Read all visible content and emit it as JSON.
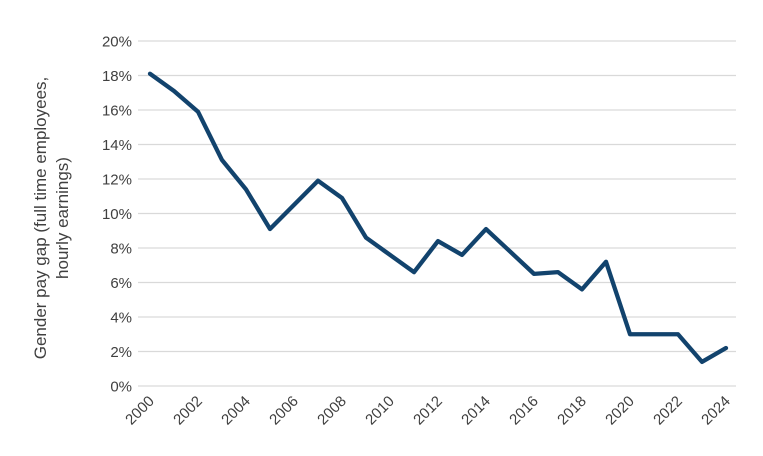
{
  "chart_data": {
    "type": "line",
    "ylabel": "Gender pay gap (full time employees, hourly earnings)",
    "ylabel_lines": [
      "Gender pay gap (full time employees,",
      "hourly earnings)"
    ],
    "x": [
      2000,
      2001,
      2002,
      2003,
      2004,
      2005,
      2006,
      2007,
      2008,
      2009,
      2010,
      2011,
      2012,
      2013,
      2014,
      2015,
      2016,
      2017,
      2018,
      2019,
      2020,
      2021,
      2022,
      2023,
      2024
    ],
    "values": [
      18.1,
      17.1,
      15.9,
      13.1,
      11.4,
      9.1,
      10.5,
      11.9,
      10.9,
      8.6,
      7.6,
      6.6,
      8.4,
      7.6,
      9.1,
      7.8,
      6.5,
      6.6,
      5.6,
      7.2,
      3.0,
      3.0,
      3.0,
      1.4,
      2.2
    ],
    "x_tick_labels": [
      "2000",
      "2002",
      "2004",
      "2006",
      "2008",
      "2010",
      "2012",
      "2014",
      "2016",
      "2018",
      "2020",
      "2022",
      "2024"
    ],
    "y_tick_labels": [
      "0%",
      "2%",
      "4%",
      "6%",
      "8%",
      "10%",
      "12%",
      "14%",
      "16%",
      "18%",
      "20%"
    ],
    "y_tick_step": 2,
    "ylim": [
      0,
      20
    ],
    "xlim": [
      1999.5,
      2024.5
    ],
    "grid": "horizontal",
    "legend": "none",
    "colors": {
      "line": "#12436D",
      "grid": "#D9D9D9",
      "text": "#404040",
      "background": "#FFFFFF"
    }
  }
}
